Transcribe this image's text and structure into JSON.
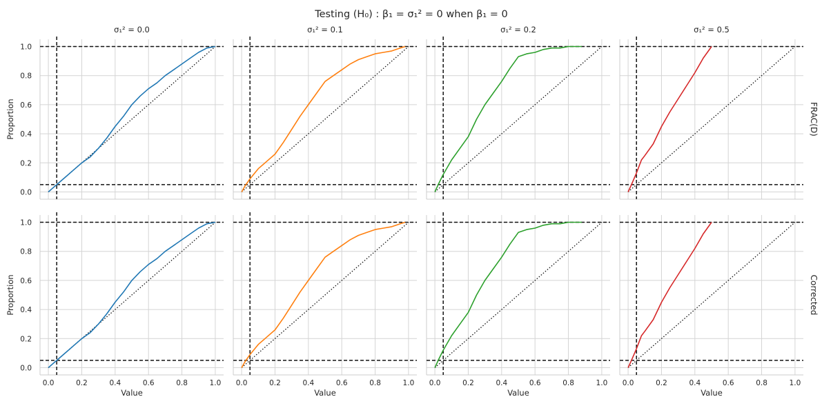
{
  "figure": {
    "title": "Testing (H₀) : β₁ = σ₁² = 0 when β₁ = 0",
    "column_titles": [
      "σ₁² = 0.0",
      "σ₁² = 0.1",
      "σ₁² = 0.2",
      "σ₁² = 0.5"
    ],
    "row_labels": [
      "FRAC(D)",
      "Corrected"
    ],
    "xlabel": "Value",
    "ylabel": "Proportion"
  },
  "chart_data": {
    "type": "line",
    "facets": "4 columns x 2 rows, shared axes",
    "xlim": [
      -0.05,
      1.05
    ],
    "ylim": [
      -0.05,
      1.05
    ],
    "xticks": [
      "0.0",
      "0.2",
      "0.4",
      "0.6",
      "0.8",
      "1.0"
    ],
    "yticks": [
      "0.0",
      "0.2",
      "0.4",
      "0.6",
      "0.8",
      "1.0"
    ],
    "grid": true,
    "reference_lines": {
      "vertical_dashed_x": 0.05,
      "horizontal_dashed_y": [
        0.05,
        1.0
      ],
      "diagonal_dotted": [
        [
          0,
          0
        ],
        [
          1,
          1
        ]
      ]
    },
    "colors": [
      "#1f77b4",
      "#ff7f0e",
      "#2ca02c",
      "#d62728"
    ],
    "panels": [
      {
        "row": 0,
        "col": 0,
        "x": [
          0,
          0.02,
          0.05,
          0.1,
          0.15,
          0.2,
          0.25,
          0.3,
          0.35,
          0.4,
          0.45,
          0.5,
          0.55,
          0.6,
          0.65,
          0.7,
          0.75,
          0.8,
          0.85,
          0.9,
          0.95,
          1.0
        ],
        "y": [
          0,
          0.02,
          0.05,
          0.1,
          0.15,
          0.2,
          0.24,
          0.3,
          0.37,
          0.45,
          0.52,
          0.6,
          0.66,
          0.71,
          0.75,
          0.8,
          0.84,
          0.88,
          0.92,
          0.96,
          0.99,
          1.0
        ]
      },
      {
        "row": 0,
        "col": 1,
        "x": [
          0,
          0.02,
          0.05,
          0.1,
          0.15,
          0.2,
          0.25,
          0.3,
          0.35,
          0.4,
          0.45,
          0.5,
          0.55,
          0.6,
          0.65,
          0.7,
          0.75,
          0.8,
          0.85,
          0.9,
          0.95,
          0.98
        ],
        "y": [
          0,
          0.04,
          0.09,
          0.16,
          0.21,
          0.26,
          0.34,
          0.43,
          0.52,
          0.6,
          0.68,
          0.76,
          0.8,
          0.84,
          0.88,
          0.91,
          0.93,
          0.95,
          0.96,
          0.97,
          0.99,
          1.0
        ]
      },
      {
        "row": 0,
        "col": 2,
        "x": [
          0,
          0.02,
          0.05,
          0.1,
          0.15,
          0.2,
          0.25,
          0.3,
          0.35,
          0.4,
          0.45,
          0.5,
          0.55,
          0.6,
          0.65,
          0.7,
          0.75,
          0.8,
          0.85,
          0.88
        ],
        "y": [
          0,
          0.05,
          0.12,
          0.22,
          0.3,
          0.38,
          0.5,
          0.6,
          0.68,
          0.76,
          0.85,
          0.93,
          0.95,
          0.96,
          0.98,
          0.99,
          0.99,
          1.0,
          1.0,
          1.0
        ]
      },
      {
        "row": 0,
        "col": 3,
        "x": [
          0,
          0.02,
          0.05,
          0.08,
          0.1,
          0.15,
          0.2,
          0.25,
          0.3,
          0.35,
          0.4,
          0.45,
          0.5
        ],
        "y": [
          0,
          0.05,
          0.13,
          0.22,
          0.25,
          0.33,
          0.45,
          0.55,
          0.64,
          0.73,
          0.82,
          0.92,
          1.0
        ]
      },
      {
        "row": 1,
        "col": 0,
        "x": [
          0,
          0.02,
          0.05,
          0.1,
          0.15,
          0.2,
          0.25,
          0.3,
          0.35,
          0.4,
          0.45,
          0.5,
          0.55,
          0.6,
          0.65,
          0.7,
          0.75,
          0.8,
          0.85,
          0.9,
          0.95,
          1.0
        ],
        "y": [
          0,
          0.02,
          0.05,
          0.1,
          0.15,
          0.2,
          0.24,
          0.3,
          0.37,
          0.45,
          0.52,
          0.6,
          0.66,
          0.71,
          0.75,
          0.8,
          0.84,
          0.88,
          0.92,
          0.96,
          0.99,
          1.0
        ]
      },
      {
        "row": 1,
        "col": 1,
        "x": [
          0,
          0.02,
          0.05,
          0.1,
          0.15,
          0.2,
          0.25,
          0.3,
          0.35,
          0.4,
          0.45,
          0.5,
          0.55,
          0.6,
          0.65,
          0.7,
          0.75,
          0.8,
          0.85,
          0.9,
          0.95,
          0.98
        ],
        "y": [
          0,
          0.04,
          0.09,
          0.16,
          0.21,
          0.26,
          0.34,
          0.43,
          0.52,
          0.6,
          0.68,
          0.76,
          0.8,
          0.84,
          0.88,
          0.91,
          0.93,
          0.95,
          0.96,
          0.97,
          0.99,
          1.0
        ]
      },
      {
        "row": 1,
        "col": 2,
        "x": [
          0,
          0.02,
          0.05,
          0.1,
          0.15,
          0.2,
          0.25,
          0.3,
          0.35,
          0.4,
          0.45,
          0.5,
          0.55,
          0.6,
          0.65,
          0.7,
          0.75,
          0.8,
          0.85,
          0.88
        ],
        "y": [
          0,
          0.05,
          0.12,
          0.22,
          0.3,
          0.38,
          0.5,
          0.6,
          0.68,
          0.76,
          0.85,
          0.93,
          0.95,
          0.96,
          0.98,
          0.99,
          0.99,
          1.0,
          1.0,
          1.0
        ]
      },
      {
        "row": 1,
        "col": 3,
        "x": [
          0,
          0.02,
          0.05,
          0.08,
          0.1,
          0.15,
          0.2,
          0.25,
          0.3,
          0.35,
          0.4,
          0.45,
          0.5
        ],
        "y": [
          0,
          0.05,
          0.13,
          0.22,
          0.25,
          0.33,
          0.45,
          0.55,
          0.64,
          0.73,
          0.82,
          0.92,
          1.0
        ]
      }
    ]
  }
}
